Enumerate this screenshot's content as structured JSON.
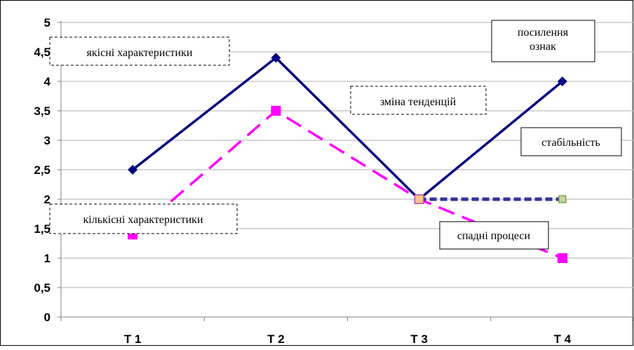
{
  "chart_data": {
    "type": "line",
    "categories": [
      "T 1",
      "T 2",
      "T 3",
      "T 4"
    ],
    "y_ticks": [
      "0",
      "0,5",
      "1",
      "1,5",
      "2",
      "2,5",
      "3",
      "3,5",
      "4",
      "4,5",
      "5"
    ],
    "ylim": [
      0,
      5
    ],
    "grid": true,
    "series": [
      {
        "values": [
          2.5,
          4.4,
          2.0,
          4.0
        ],
        "color": "#000080",
        "style": "solid",
        "marker": "diamond"
      },
      {
        "values": [
          1.4,
          3.5,
          2.0,
          1.0
        ],
        "color": "#FF00FF",
        "style": "dashed",
        "marker": "square"
      },
      {
        "from_category": "T 3",
        "values": [
          null,
          null,
          2.0,
          2.0
        ],
        "color": "#333399",
        "marker_fill": "#FAC090",
        "marker_fill_end": "#C3D69B",
        "style": "dashed",
        "marker": "square"
      }
    ],
    "annotations": [
      {
        "text": "якісні характеристики",
        "box": "dashed"
      },
      {
        "text": "кількісні характеристики",
        "box": "dashed"
      },
      {
        "text": "зміна тенденцій",
        "box": "dashed"
      },
      {
        "text": "посилення ознак",
        "box": "solid"
      },
      {
        "text": "стабільність",
        "box": "solid"
      },
      {
        "text": "спадні процеси",
        "box": "solid"
      }
    ]
  }
}
